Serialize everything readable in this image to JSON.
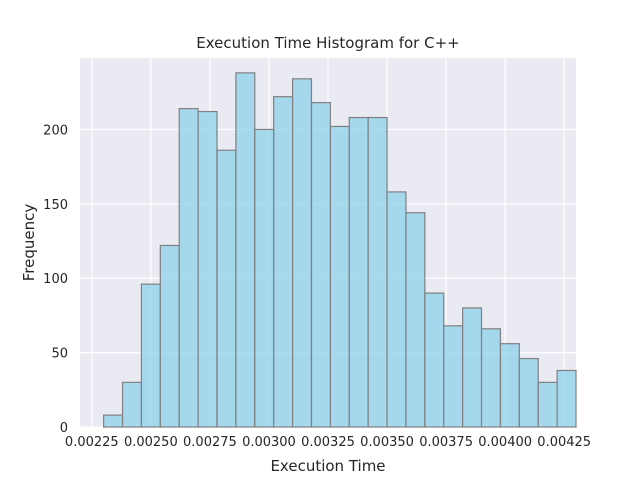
{
  "chart_data": {
    "type": "bar",
    "title": "Execution Time Histogram for C++",
    "xlabel": "Execution Time",
    "ylabel": "Frequency",
    "xlim": [
      0.0022,
      0.0043
    ],
    "ylim": [
      0,
      248
    ],
    "xticks": [
      0.00225,
      0.0025,
      0.00275,
      0.003,
      0.00325,
      0.0035,
      0.00375,
      0.004,
      0.00425
    ],
    "xtick_labels": [
      "0.00225",
      "0.00250",
      "0.00275",
      "0.00300",
      "0.00325",
      "0.00350",
      "0.00375",
      "0.00400",
      "0.00425"
    ],
    "yticks": [
      0,
      50,
      100,
      150,
      200
    ],
    "ytick_labels": [
      "0",
      "50",
      "100",
      "150",
      "200"
    ],
    "bin_edges": [
      0.0023,
      0.00238,
      0.00246,
      0.00254,
      0.00262,
      0.0027,
      0.00278,
      0.00286,
      0.00294,
      0.00302,
      0.0031,
      0.00318,
      0.00326,
      0.00334,
      0.00342,
      0.0035,
      0.00358,
      0.00366,
      0.00374,
      0.00382,
      0.0039,
      0.00398,
      0.00406,
      0.00414,
      0.00422
    ],
    "values": [
      8,
      30,
      96,
      122,
      214,
      212,
      186,
      238,
      200,
      222,
      234,
      218,
      202,
      208,
      208,
      158,
      144,
      90,
      68,
      80,
      66,
      56,
      46,
      30,
      38
    ],
    "bar_color": "#87ceeb",
    "bar_edge_color": "#808080",
    "background_color": "#eaeaf2",
    "grid": true,
    "grid_color": "#ffffff"
  }
}
